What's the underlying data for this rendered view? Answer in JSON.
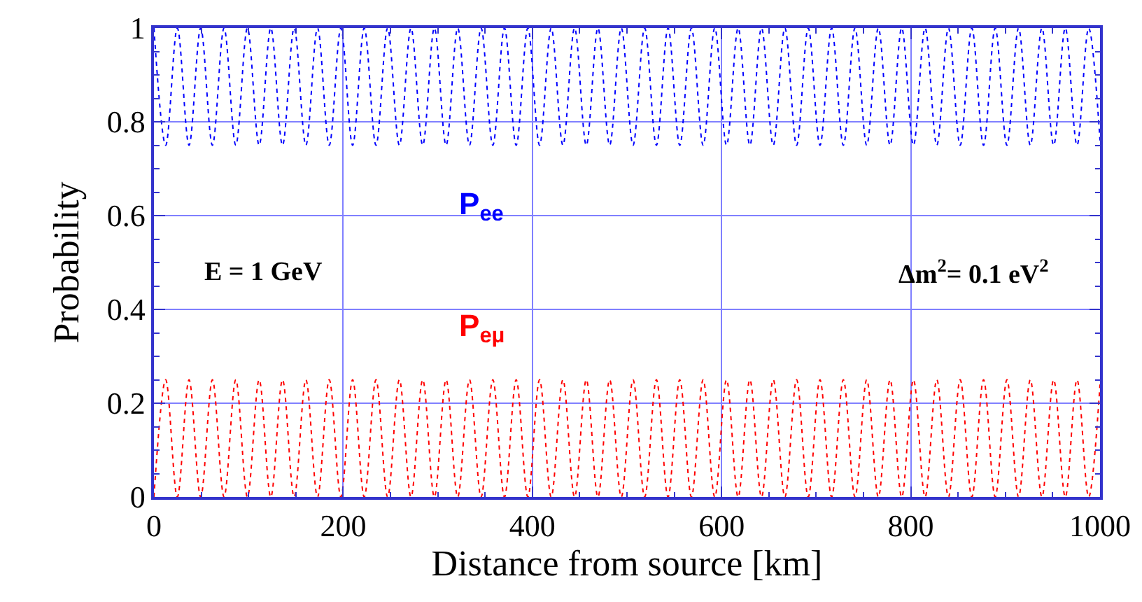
{
  "chart_data": {
    "type": "line",
    "xlabel": "Distance from source [km]",
    "ylabel": "Probability",
    "x": [
      0,
      12.4,
      24.7,
      37.1,
      49.4,
      61.8,
      74.1,
      86.5,
      98.8,
      111.2,
      123.5,
      135.9,
      148.2,
      160.6,
      172.9,
      185.3,
      197.6,
      210.0,
      222.3,
      234.7,
      247.0,
      259.4,
      271.7,
      284.1,
      296.4,
      308.8,
      321.1,
      333.5,
      345.8,
      358.2,
      370.5,
      382.9,
      395.2,
      407.6,
      419.9,
      432.3,
      444.6,
      457.0,
      469.3,
      481.7,
      494.0,
      506.4,
      518.7,
      531.1,
      543.4,
      555.8,
      568.1,
      580.5,
      592.8,
      605.2,
      617.5,
      629.9,
      642.2,
      654.6,
      666.9,
      679.3,
      691.6,
      704.0,
      716.3,
      728.7,
      741.0,
      753.4,
      765.7,
      778.1,
      790.4,
      802.8,
      815.1,
      827.5,
      839.8,
      852.2,
      864.5,
      876.9,
      889.2,
      901.6,
      913.9,
      926.3,
      938.6,
      951.0,
      963.3,
      975.7,
      988.0,
      1000
    ],
    "series": [
      {
        "name": "P$_{ee}$",
        "color": "#0000ff",
        "values": [
          1,
          0.75,
          1,
          0.75,
          1,
          0.75,
          1,
          0.75,
          1,
          0.75,
          1,
          0.75,
          1,
          0.75,
          1,
          0.75,
          1,
          0.75,
          1,
          0.75,
          1,
          0.75,
          1,
          0.75,
          1,
          0.75,
          1,
          0.75,
          1,
          0.75,
          1,
          0.75,
          1,
          0.75,
          1,
          0.75,
          1,
          0.75,
          1,
          0.75,
          1,
          0.75,
          1,
          0.75,
          1,
          0.75,
          1,
          0.75,
          1,
          0.75,
          1,
          0.75,
          1,
          0.75,
          1,
          0.75,
          1,
          0.75,
          1,
          0.75,
          1,
          0.75,
          1,
          0.75,
          1,
          0.75,
          1,
          0.75,
          1,
          0.75,
          1,
          0.75,
          1,
          0.75,
          1,
          0.75,
          1,
          0.75,
          1,
          0.75,
          1,
          0.76
        ]
      },
      {
        "name": "P$_{eμ}$",
        "color": "#ff0000",
        "values": [
          0,
          0.25,
          0,
          0.25,
          0,
          0.25,
          0,
          0.25,
          0,
          0.25,
          0,
          0.25,
          0,
          0.25,
          0,
          0.25,
          0,
          0.25,
          0,
          0.25,
          0,
          0.25,
          0,
          0.25,
          0,
          0.25,
          0,
          0.25,
          0,
          0.25,
          0,
          0.25,
          0,
          0.25,
          0,
          0.25,
          0,
          0.25,
          0,
          0.25,
          0,
          0.25,
          0,
          0.25,
          0,
          0.25,
          0,
          0.25,
          0,
          0.25,
          0,
          0.25,
          0,
          0.25,
          0,
          0.25,
          0,
          0.25,
          0,
          0.25,
          0,
          0.25,
          0,
          0.25,
          0,
          0.25,
          0,
          0.25,
          0,
          0.25,
          0,
          0.25,
          0,
          0.25,
          0,
          0.25,
          0,
          0.25,
          0,
          0.25,
          0,
          0.24
        ]
      }
    ],
    "xlim": [
      0,
      1000
    ],
    "xticks": [
      0,
      200,
      400,
      600,
      800,
      1000
    ],
    "ylim": [
      0,
      1
    ],
    "yticks": [
      0,
      0.2,
      0.4,
      0.6,
      0.8,
      1
    ],
    "grid": true,
    "legend": false,
    "marker": "none",
    "line_style": "dotted",
    "annotations": [
      "E = 1 GeV",
      "Δm$^{2}$= 0.1 eV$^{2}$"
    ]
  }
}
